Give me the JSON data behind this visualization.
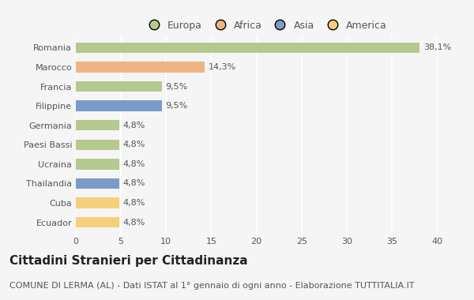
{
  "categories": [
    "Romania",
    "Marocco",
    "Francia",
    "Filippine",
    "Germania",
    "Paesi Bassi",
    "Ucraina",
    "Thailandia",
    "Cuba",
    "Ecuador"
  ],
  "values": [
    38.1,
    14.3,
    9.5,
    9.5,
    4.8,
    4.8,
    4.8,
    4.8,
    4.8,
    4.8
  ],
  "labels": [
    "38,1%",
    "14,3%",
    "9,5%",
    "9,5%",
    "4,8%",
    "4,8%",
    "4,8%",
    "4,8%",
    "4,8%",
    "4,8%"
  ],
  "colors": [
    "#b5c98e",
    "#f0b482",
    "#b5c98e",
    "#7b9bc8",
    "#b5c98e",
    "#b5c98e",
    "#b5c98e",
    "#7b9bc8",
    "#f5d07a",
    "#f5d07a"
  ],
  "regions": [
    "Europa",
    "Africa",
    "Europa",
    "Asia",
    "Europa",
    "Europa",
    "Europa",
    "Asia",
    "America",
    "America"
  ],
  "legend_labels": [
    "Europa",
    "Africa",
    "Asia",
    "America"
  ],
  "legend_colors": [
    "#b5c98e",
    "#f0b482",
    "#7b9bc8",
    "#f5d07a"
  ],
  "xlim": [
    0,
    42
  ],
  "xticks": [
    0,
    5,
    10,
    15,
    20,
    25,
    30,
    35,
    40
  ],
  "title": "Cittadini Stranieri per Cittadinanza",
  "subtitle": "COMUNE DI LERMA (AL) - Dati ISTAT al 1° gennaio di ogni anno - Elaborazione TUTTITALIA.IT",
  "background_color": "#f5f5f5",
  "grid_color": "#ffffff",
  "bar_height": 0.55,
  "title_fontsize": 11,
  "subtitle_fontsize": 8,
  "label_fontsize": 8,
  "tick_fontsize": 8,
  "legend_fontsize": 9
}
